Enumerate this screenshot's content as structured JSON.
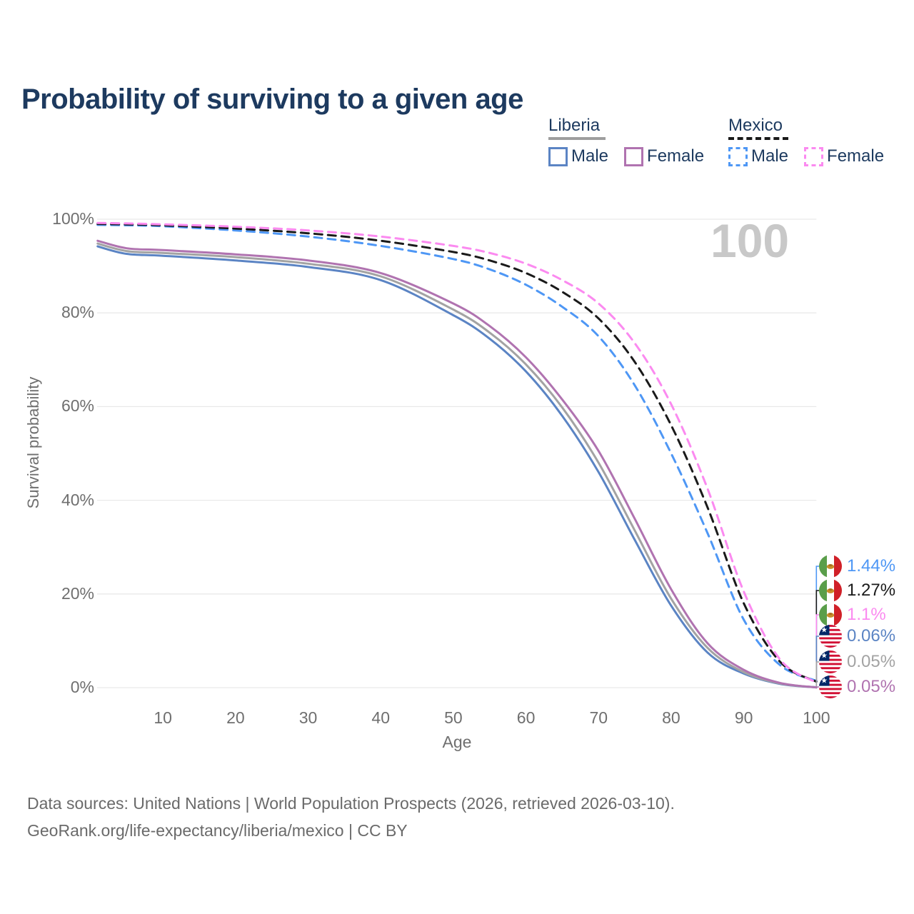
{
  "title": "Probability of surviving to a given age",
  "watermark_age": "100",
  "legend": {
    "groups": [
      {
        "country": "Liberia",
        "line_style": "solid",
        "underline_color": "#9e9e9e",
        "items": [
          {
            "label": "Male",
            "color": "#5b84c4",
            "dashed": false
          },
          {
            "label": "Female",
            "color": "#b073b0",
            "dashed": false
          }
        ]
      },
      {
        "country": "Mexico",
        "line_style": "dashed",
        "underline_color": "#191919",
        "items": [
          {
            "label": "Male",
            "color": "#4e97f5",
            "dashed": true
          },
          {
            "label": "Female",
            "color": "#fb8af0",
            "dashed": true
          }
        ]
      }
    ]
  },
  "chart_data": {
    "type": "line",
    "title": "Probability of surviving to a given age",
    "xlabel": "Age",
    "ylabel": "Survival probability",
    "xlim": [
      1,
      100
    ],
    "ylim": [
      0,
      100
    ],
    "grid": true,
    "x_ticks": [
      10,
      20,
      30,
      40,
      50,
      60,
      70,
      80,
      90,
      100
    ],
    "y_ticks": [
      {
        "value": 100,
        "label": "100%"
      },
      {
        "value": 80,
        "label": "80%"
      },
      {
        "value": 60,
        "label": "60%"
      },
      {
        "value": 40,
        "label": "40%"
      },
      {
        "value": 20,
        "label": "20%"
      },
      {
        "value": 0,
        "label": "0%"
      }
    ],
    "x": [
      1,
      5,
      10,
      20,
      30,
      40,
      50,
      55,
      60,
      65,
      70,
      75,
      80,
      85,
      90,
      95,
      100
    ],
    "series": [
      {
        "id": "liberia-male",
        "name": "Liberia Male",
        "country": "Liberia",
        "sex": "Male",
        "color": "#5b84c4",
        "dashed": false,
        "values": [
          94.2,
          92.6,
          92.2,
          91.2,
          89.8,
          87.0,
          79.5,
          74.5,
          67.5,
          58.0,
          46.0,
          31.5,
          17.5,
          7.5,
          3.0,
          0.8,
          0.06
        ]
      },
      {
        "id": "liberia-all",
        "name": "Liberia",
        "country": "Liberia",
        "sex": "Both sexes",
        "color": "#a3a3a3",
        "dashed": false,
        "values": [
          94.8,
          93.2,
          92.8,
          91.9,
          90.5,
          87.8,
          80.7,
          75.8,
          69.0,
          59.8,
          48.0,
          33.5,
          19.0,
          8.5,
          3.3,
          0.9,
          0.05
        ]
      },
      {
        "id": "liberia-female",
        "name": "Liberia Female",
        "country": "Liberia",
        "sex": "Female",
        "color": "#b073b0",
        "dashed": false,
        "values": [
          95.4,
          93.8,
          93.4,
          92.5,
          91.2,
          88.5,
          82.0,
          77.2,
          70.5,
          61.5,
          50.5,
          36.0,
          21.0,
          9.5,
          3.8,
          1.0,
          0.05
        ]
      },
      {
        "id": "mexico-male",
        "name": "Mexico Male",
        "country": "Mexico",
        "sex": "Male",
        "color": "#4e97f5",
        "dashed": true,
        "values": [
          98.8,
          98.7,
          98.5,
          97.6,
          96.3,
          94.3,
          91.5,
          89.3,
          86.0,
          81.3,
          75.0,
          64.5,
          50.0,
          33.0,
          14.5,
          4.8,
          1.44
        ]
      },
      {
        "id": "mexico-all",
        "name": "Mexico",
        "country": "Mexico",
        "sex": "Both sexes",
        "color": "#1a1a1a",
        "dashed": true,
        "values": [
          99.0,
          98.9,
          98.7,
          98.0,
          97.0,
          95.4,
          93.0,
          91.2,
          88.5,
          84.5,
          78.8,
          69.5,
          56.0,
          38.5,
          18.0,
          5.5,
          1.27
        ]
      },
      {
        "id": "mexico-female",
        "name": "Mexico Female",
        "country": "Mexico",
        "sex": "Female",
        "color": "#fb8af0",
        "dashed": true,
        "values": [
          99.2,
          99.1,
          98.9,
          98.4,
          97.6,
          96.3,
          94.3,
          92.8,
          90.5,
          87.0,
          82.0,
          73.5,
          60.5,
          42.5,
          20.5,
          6.0,
          1.1
        ]
      }
    ],
    "end_labels_note": "value of each series at age 100"
  },
  "end_labels": [
    {
      "series": "mexico-male",
      "flag": "mexico-flag-icon",
      "value": "1.44%",
      "color": "#4e97f5"
    },
    {
      "series": "mexico-all",
      "flag": "mexico-flag-icon",
      "value": "1.27%",
      "color": "#1a1a1a"
    },
    {
      "series": "mexico-female",
      "flag": "mexico-flag-icon",
      "value": "1.1%",
      "color": "#fb8af0"
    },
    {
      "series": "liberia-male",
      "flag": "liberia-flag-icon",
      "value": "0.06%",
      "color": "#5b84c4"
    },
    {
      "series": "liberia-all",
      "flag": "liberia-flag-icon",
      "value": "0.05%",
      "color": "#a3a3a3"
    },
    {
      "series": "liberia-female",
      "flag": "liberia-flag-icon",
      "value": "0.05%",
      "color": "#b073b0"
    }
  ],
  "footer": {
    "line1": "Data sources: United Nations | World Population Prospects (2026, retrieved 2026-03-10).",
    "line2": "GeoRank.org/life-expectancy/liberia/mexico | CC BY"
  }
}
